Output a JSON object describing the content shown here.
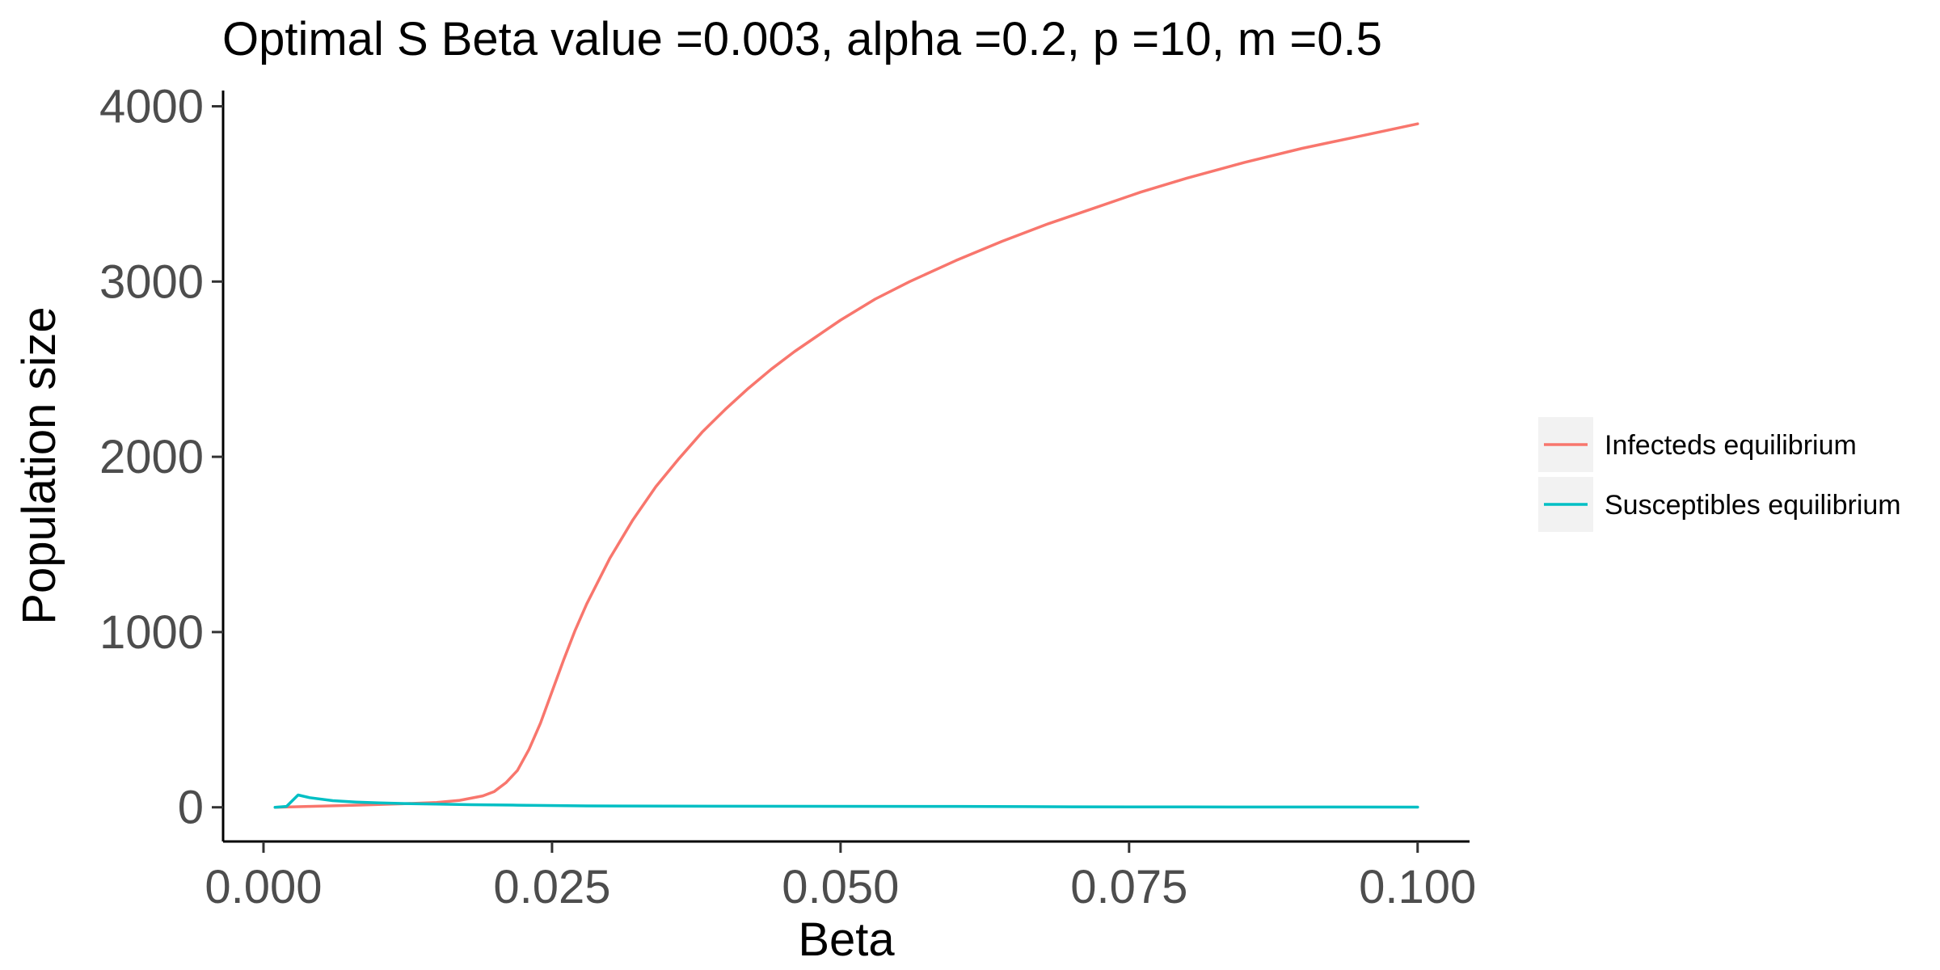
{
  "chart_data": {
    "type": "line",
    "title": "Optimal S Beta value =0.003, alpha =0.2, p =10, m =0.5",
    "xlabel": "Beta",
    "ylabel": "Population size",
    "xlim": [
      -0.0035,
      0.1045
    ],
    "ylim": [
      -195,
      4090
    ],
    "x_ticks": [
      0.0,
      0.025,
      0.05,
      0.075,
      0.1
    ],
    "x_tick_labels": [
      "0.000",
      "0.025",
      "0.050",
      "0.075",
      "0.100"
    ],
    "y_ticks": [
      0,
      1000,
      2000,
      3000,
      4000
    ],
    "y_tick_labels": [
      "0",
      "1000",
      "2000",
      "3000",
      "4000"
    ],
    "grid": false,
    "legend_position": "right",
    "series": [
      {
        "name": "Infecteds equilibrium",
        "color": "#F8766D",
        "x": [
          0.001,
          0.004,
          0.008,
          0.012,
          0.015,
          0.017,
          0.019,
          0.02,
          0.021,
          0.022,
          0.023,
          0.024,
          0.025,
          0.026,
          0.027,
          0.028,
          0.03,
          0.032,
          0.034,
          0.036,
          0.038,
          0.04,
          0.042,
          0.044,
          0.046,
          0.048,
          0.05,
          0.053,
          0.056,
          0.06,
          0.064,
          0.068,
          0.072,
          0.076,
          0.08,
          0.085,
          0.09,
          0.095,
          0.1
        ],
        "y": [
          0,
          5,
          12,
          20,
          28,
          40,
          65,
          90,
          140,
          210,
          330,
          480,
          660,
          840,
          1010,
          1160,
          1420,
          1640,
          1830,
          1990,
          2140,
          2270,
          2390,
          2500,
          2600,
          2690,
          2780,
          2900,
          3000,
          3120,
          3230,
          3330,
          3420,
          3510,
          3590,
          3680,
          3760,
          3830,
          3900
        ]
      },
      {
        "name": "Susceptibles equilibrium",
        "color": "#00BFC4",
        "x": [
          0.001,
          0.002,
          0.003,
          0.004,
          0.006,
          0.008,
          0.01,
          0.012,
          0.015,
          0.018,
          0.022,
          0.028,
          0.04,
          0.06,
          0.07,
          0.08,
          0.1
        ],
        "y": [
          0,
          5,
          70,
          55,
          38,
          30,
          25,
          22,
          18,
          15,
          12,
          8,
          6,
          5,
          3,
          2,
          1
        ]
      }
    ]
  }
}
